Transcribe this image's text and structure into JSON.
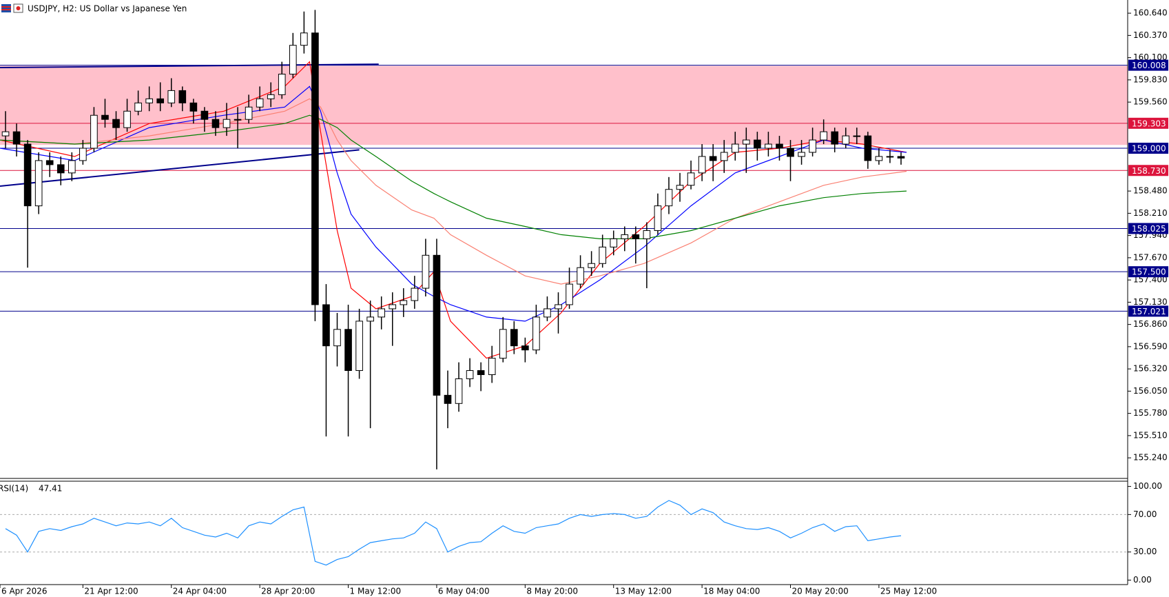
{
  "chart_data": {
    "type": "candlestick",
    "title": "USDJPY, H2:  US Dollar vs Japanese Yen",
    "up_color": "#ffffff",
    "down_color": "#000000",
    "wick_color": "#000000",
    "xlim": [
      0,
      408
    ],
    "xticks": [
      {
        "value": 0,
        "label": "6 Apr 2026"
      },
      {
        "value": 30,
        "label": "21 Apr 12:00"
      },
      {
        "value": 62,
        "label": "24 Apr 04:00"
      },
      {
        "value": 94,
        "label": "28 Apr 20:00"
      },
      {
        "value": 126,
        "label": "1 May 12:00"
      },
      {
        "value": 158,
        "label": "6 May 04:00"
      },
      {
        "value": 190,
        "label": "8 May 20:00"
      },
      {
        "value": 222,
        "label": "13 May 12:00"
      },
      {
        "value": 254,
        "label": "18 May 04:00"
      },
      {
        "value": 286,
        "label": "20 May 20:00"
      },
      {
        "value": 318,
        "label": "25 May 12:00"
      }
    ],
    "ylim": [
      154.99,
      160.8
    ],
    "yticks": [
      {
        "value": 160.64,
        "label": "160.640"
      },
      {
        "value": 160.37,
        "label": "160.370"
      },
      {
        "value": 160.1,
        "label": "160.100"
      },
      {
        "value": 159.83,
        "label": "159.830"
      },
      {
        "value": 159.56,
        "label": "159.560"
      },
      {
        "value": 158.48,
        "label": "158.480"
      },
      {
        "value": 158.21,
        "label": "158.210"
      },
      {
        "value": 157.94,
        "label": "157.940"
      },
      {
        "value": 157.67,
        "label": "157.670"
      },
      {
        "value": 157.4,
        "label": "157.400"
      },
      {
        "value": 157.13,
        "label": "157.130"
      },
      {
        "value": 156.86,
        "label": "156.860"
      },
      {
        "value": 156.59,
        "label": "156.590"
      },
      {
        "value": 156.32,
        "label": "156.320"
      },
      {
        "value": 156.05,
        "label": "156.050"
      },
      {
        "value": 155.78,
        "label": "155.780"
      },
      {
        "value": 155.51,
        "label": "155.510"
      },
      {
        "value": 155.24,
        "label": "155.240"
      }
    ],
    "x": [
      2,
      6,
      10,
      14,
      18,
      22,
      26,
      30,
      34,
      38,
      42,
      46,
      50,
      54,
      58,
      62,
      66,
      70,
      74,
      78,
      82,
      86,
      90,
      94,
      98,
      102,
      106,
      110,
      114,
      118,
      122,
      126,
      130,
      134,
      138,
      142,
      146,
      150,
      154,
      158,
      162,
      166,
      170,
      174,
      178,
      182,
      186,
      190,
      194,
      198,
      202,
      206,
      210,
      214,
      218,
      222,
      226,
      230,
      234,
      238,
      242,
      246,
      250,
      254,
      258,
      262,
      266,
      270,
      274,
      278,
      282,
      286,
      290,
      294,
      298,
      302,
      306,
      310,
      314,
      318,
      322,
      326
    ],
    "open": [
      159.15,
      159.2,
      159.05,
      158.3,
      158.85,
      158.8,
      158.7,
      158.85,
      159.0,
      159.4,
      159.35,
      159.25,
      159.45,
      159.55,
      159.6,
      159.55,
      159.7,
      159.55,
      159.45,
      159.35,
      159.25,
      159.35,
      159.35,
      159.5,
      159.6,
      159.65,
      159.9,
      160.25,
      160.4,
      157.1,
      156.6,
      156.8,
      156.3,
      156.9,
      156.95,
      157.05,
      157.1,
      157.15,
      157.3,
      157.7,
      156.0,
      155.9,
      156.2,
      156.3,
      156.25,
      156.45,
      156.8,
      156.6,
      156.55,
      156.95,
      157.05,
      157.1,
      157.35,
      157.55,
      157.6,
      157.8,
      157.9,
      157.95,
      157.9,
      158.0,
      158.3,
      158.5,
      158.55,
      158.7,
      158.9,
      158.85,
      158.95,
      159.05,
      159.1,
      159.0,
      159.05,
      159.0,
      158.9,
      158.95,
      159.1,
      159.2,
      159.05,
      159.15,
      159.15,
      158.85,
      158.9,
      158.9
    ],
    "high": [
      159.45,
      159.3,
      159.1,
      158.95,
      158.95,
      158.9,
      158.95,
      159.1,
      159.5,
      159.6,
      159.45,
      159.6,
      159.7,
      159.75,
      159.8,
      159.85,
      159.75,
      159.6,
      159.5,
      159.45,
      159.55,
      159.5,
      159.65,
      159.75,
      159.8,
      160.05,
      160.4,
      160.66,
      160.68,
      157.35,
      157.0,
      157.1,
      157.05,
      157.15,
      157.2,
      157.25,
      157.3,
      157.45,
      157.9,
      157.9,
      156.3,
      156.4,
      156.45,
      156.4,
      156.6,
      156.95,
      156.9,
      156.7,
      157.1,
      157.2,
      157.25,
      157.55,
      157.7,
      157.75,
      157.95,
      158.0,
      158.05,
      158.05,
      158.1,
      158.45,
      158.65,
      158.7,
      158.85,
      159.05,
      159.05,
      159.1,
      159.2,
      159.25,
      159.2,
      159.2,
      159.15,
      159.1,
      159.1,
      159.25,
      159.35,
      159.25,
      159.25,
      159.25,
      159.2,
      159.0,
      158.98,
      158.95
    ],
    "low": [
      159.0,
      158.9,
      157.55,
      158.2,
      158.65,
      158.55,
      158.6,
      158.8,
      158.95,
      159.25,
      159.1,
      159.2,
      159.4,
      159.45,
      159.45,
      159.5,
      159.45,
      159.3,
      159.2,
      159.15,
      159.15,
      159.0,
      159.3,
      159.45,
      159.5,
      159.6,
      159.85,
      160.15,
      156.9,
      155.5,
      156.35,
      155.5,
      156.2,
      155.6,
      156.8,
      156.6,
      156.95,
      157.05,
      157.2,
      155.1,
      155.6,
      155.8,
      156.1,
      156.05,
      156.15,
      156.4,
      156.5,
      156.4,
      156.5,
      156.9,
      156.75,
      157.05,
      157.3,
      157.45,
      157.55,
      157.7,
      157.75,
      157.6,
      157.3,
      157.95,
      158.2,
      158.35,
      158.5,
      158.6,
      158.6,
      158.7,
      158.85,
      158.7,
      158.85,
      158.9,
      158.85,
      158.6,
      158.8,
      158.9,
      159.05,
      158.95,
      159.0,
      159.05,
      158.75,
      158.8,
      158.82,
      158.8
    ],
    "close": [
      159.2,
      159.05,
      158.3,
      158.85,
      158.8,
      158.7,
      158.85,
      159.0,
      159.4,
      159.35,
      159.25,
      159.45,
      159.55,
      159.6,
      159.55,
      159.7,
      159.55,
      159.45,
      159.35,
      159.25,
      159.35,
      159.35,
      159.5,
      159.6,
      159.65,
      159.9,
      160.25,
      160.4,
      157.1,
      156.6,
      156.8,
      156.3,
      156.9,
      156.95,
      157.05,
      157.1,
      157.15,
      157.3,
      157.7,
      156.0,
      155.9,
      156.2,
      156.3,
      156.25,
      156.45,
      156.8,
      156.6,
      156.55,
      156.95,
      157.05,
      157.1,
      157.35,
      157.55,
      157.6,
      157.8,
      157.9,
      157.95,
      157.9,
      158.0,
      158.3,
      158.5,
      158.55,
      158.7,
      158.9,
      158.85,
      158.95,
      159.05,
      159.1,
      159.0,
      159.05,
      159.0,
      158.9,
      158.95,
      159.1,
      159.2,
      159.05,
      159.15,
      159.15,
      158.85,
      158.9,
      158.9,
      158.88
    ],
    "moving_averages": {
      "x": [
        0,
        27,
        54,
        81,
        103,
        112,
        116,
        122,
        127,
        136,
        149,
        157,
        163,
        176,
        190,
        203,
        217,
        233,
        250,
        266,
        282,
        298,
        312,
        328
      ],
      "series": [
        {
          "color": "#ff0000",
          "values": [
            159.1,
            158.9,
            159.3,
            159.45,
            159.75,
            160.05,
            159.2,
            158.0,
            157.3,
            157.05,
            157.2,
            157.5,
            156.9,
            156.45,
            156.6,
            157.0,
            157.6,
            158.05,
            158.6,
            158.95,
            159.0,
            159.1,
            159.05,
            158.95
          ]
        },
        {
          "color": "#0000ff",
          "values": [
            159.0,
            158.85,
            159.25,
            159.4,
            159.5,
            159.75,
            159.45,
            158.7,
            158.2,
            157.8,
            157.35,
            157.2,
            157.1,
            156.95,
            156.9,
            157.1,
            157.4,
            157.8,
            158.3,
            158.7,
            158.9,
            159.1,
            159.0,
            158.95
          ]
        },
        {
          "color": "#fa8072",
          "values": [
            159.1,
            159.05,
            159.15,
            159.3,
            159.45,
            159.6,
            159.5,
            159.1,
            158.85,
            158.55,
            158.25,
            158.15,
            157.95,
            157.7,
            157.45,
            157.35,
            157.45,
            157.6,
            157.85,
            158.15,
            158.35,
            158.55,
            158.65,
            158.72
          ]
        },
        {
          "color": "#008000",
          "values": [
            159.1,
            159.05,
            159.1,
            159.2,
            159.3,
            159.4,
            159.35,
            159.25,
            159.1,
            158.9,
            158.6,
            158.45,
            158.35,
            158.15,
            158.05,
            157.95,
            157.9,
            157.9,
            158.0,
            158.15,
            158.3,
            158.4,
            158.45,
            158.48
          ]
        }
      ]
    },
    "zone": {
      "values": [
        159.04,
        160.0
      ],
      "color": "#ffc0cb"
    },
    "levels": [
      {
        "value": 160.008,
        "label": "160.008",
        "color": "#00008b"
      },
      {
        "value": 159.303,
        "label": "159.303",
        "color": "#dc143c"
      },
      {
        "value": 159.0,
        "label": "159.000",
        "color": "#00008b"
      },
      {
        "value": 158.73,
        "label": "158.730",
        "color": "#dc143c"
      },
      {
        "value": 158.025,
        "label": "158.025",
        "color": "#00008b"
      },
      {
        "value": 157.5,
        "label": "157.500",
        "color": "#00008b"
      },
      {
        "value": 157.021,
        "label": "157.021",
        "color": "#00008b"
      }
    ],
    "trendlines": [
      {
        "x": [
          0,
          137
        ],
        "values": [
          159.98,
          160.02
        ],
        "color": "#00008b"
      },
      {
        "x": [
          0,
          130
        ],
        "values": [
          158.54,
          158.98
        ],
        "color": "#00008b"
      }
    ],
    "rsi": {
      "name": "RSI(14)",
      "current": 47.41,
      "color": "#1e90ff",
      "ylim": [
        -4.8,
        105.6
      ],
      "yticks": [
        {
          "value": 100,
          "label": "100.00"
        },
        {
          "value": 70,
          "label": "70.00"
        },
        {
          "value": 30,
          "label": "30.00"
        },
        {
          "value": 0,
          "label": "0.00"
        }
      ],
      "levels": [
        70,
        30
      ],
      "values": [
        55,
        48,
        30,
        52,
        55,
        53,
        57,
        60,
        66,
        62,
        58,
        61,
        60,
        62,
        58,
        66,
        56,
        52,
        48,
        46,
        50,
        45,
        58,
        62,
        60,
        68,
        75,
        78,
        20,
        16,
        22,
        25,
        33,
        40,
        42,
        44,
        45,
        50,
        62,
        55,
        30,
        36,
        40,
        41,
        50,
        58,
        52,
        50,
        56,
        58,
        60,
        66,
        70,
        68,
        70,
        71,
        70,
        66,
        68,
        78,
        85,
        80,
        70,
        76,
        72,
        62,
        58,
        55,
        54,
        56,
        52,
        45,
        50,
        56,
        60,
        52,
        57,
        58,
        42,
        44,
        46,
        47.41
      ]
    }
  }
}
